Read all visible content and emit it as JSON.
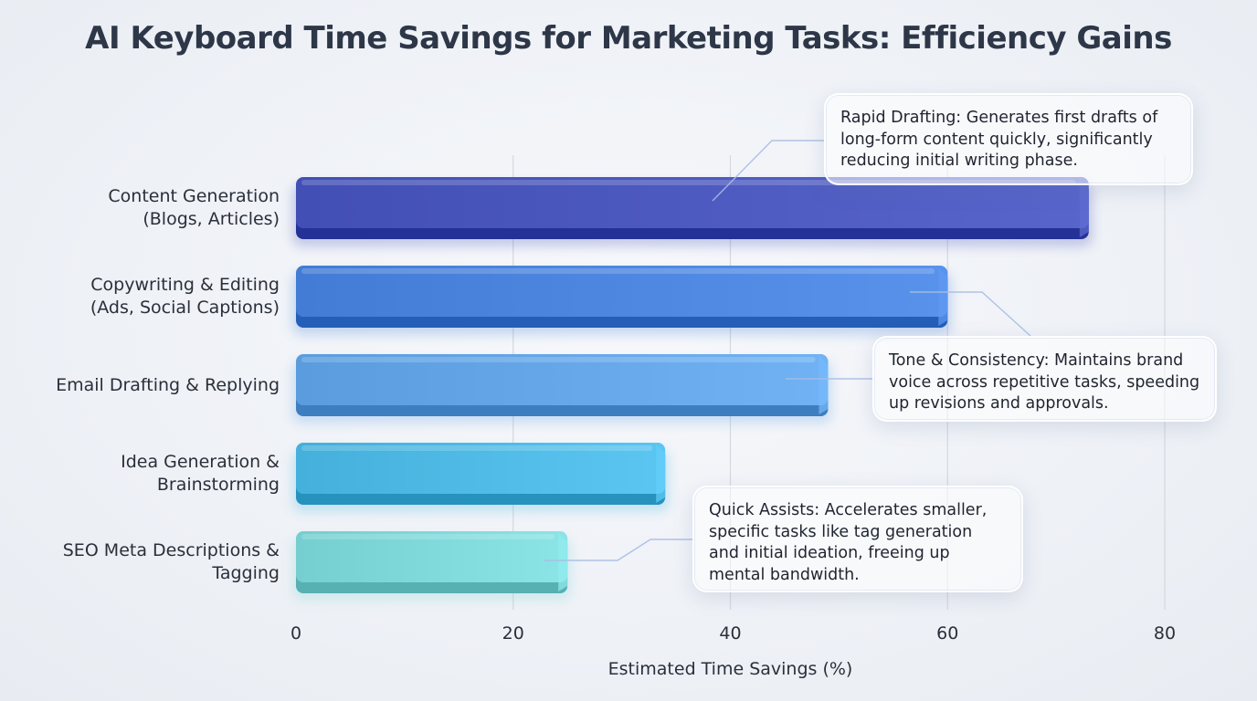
{
  "chart_data": {
    "type": "bar",
    "orientation": "horizontal",
    "title": "AI Keyboard Time Savings for Marketing Tasks: Efficiency Gains",
    "xlabel": "Estimated Time Savings (%)",
    "ylabel": "",
    "xlim": [
      0,
      80
    ],
    "ticks": [
      "0",
      "20",
      "40",
      "60",
      "80"
    ],
    "grid": true,
    "categories": [
      "Content Generation\n(Blogs, Articles)",
      "Copywriting & Editing\n(Ads, Social Captions)",
      "Email Drafting & Replying",
      "Idea Generation &\nBrainstorming",
      "SEO Meta Descriptions &\nTagging"
    ],
    "values": [
      73,
      60,
      49,
      34,
      25
    ],
    "colors": [
      "#4a57bd",
      "#4a84dd",
      "#62a4e6",
      "#4cb8e3",
      "#7dd6d8"
    ],
    "annotations": [
      {
        "text": "Rapid Drafting: Generates first drafts of long-form content quickly, significantly reducing initial writing phase.",
        "category_index": 0
      },
      {
        "text": "Tone & Consistency: Maintains brand voice across repetitive tasks, speeding up revisions and approvals.",
        "category_index": 1
      },
      {
        "text": "Quick Assists: Accelerates smaller, specific tasks like tag generation and initial ideation, freeing up mental bandwidth.",
        "category_index": 4
      }
    ]
  }
}
